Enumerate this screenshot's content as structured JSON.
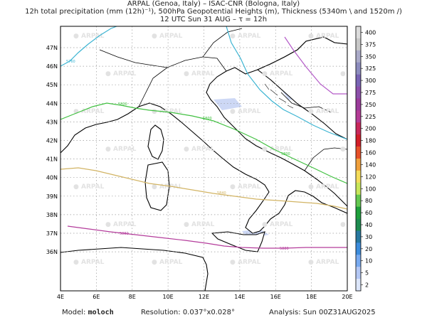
{
  "header": {
    "line1": "ARPAL (Genoa, Italy)  –  ISAC-CNR (Bologna, Italy)",
    "line2": "12h total precipitation (mm (12h)⁻¹), 500hPa Geopotential Heights (m), Thickness (5340m \\ and 1520m /)",
    "line3": "12 UTC Sun 31 AUG  –  τ = 12h"
  },
  "map": {
    "lon_labels": [
      "4E",
      "6E",
      "8E",
      "10E",
      "12E",
      "14E",
      "16E",
      "18E",
      "20E"
    ],
    "lat_labels": [
      "47N",
      "46N",
      "45N",
      "44N",
      "43N",
      "42N",
      "41N",
      "40N",
      "39N",
      "38N",
      "37N",
      "36N"
    ],
    "watermark": "ARPAL",
    "contours": [
      {
        "label": "5760",
        "color": "#3cb4d2"
      },
      {
        "label": "5800",
        "color": "#40c040"
      },
      {
        "label": "5840",
        "color": "#d2b464"
      },
      {
        "label": "5880",
        "color": "#b43c9b"
      }
    ],
    "thickness_color": "#b45ac8",
    "sea_color": "#ffffff",
    "precip_color": "#cdd8f5"
  },
  "colorbar": {
    "labels": [
      "400",
      "375",
      "350",
      "325",
      "300",
      "275",
      "250",
      "225",
      "200",
      "180",
      "160",
      "140",
      "120",
      "100",
      "80",
      "60",
      "40",
      "30",
      "20",
      "10",
      "5",
      "2"
    ],
    "colors": [
      "#dcdcdc",
      "#c8c8c8",
      "#aaaac8",
      "#8c8cbe",
      "#7864b4",
      "#8c50aa",
      "#9b3c9b",
      "#b43c96",
      "#c8285a",
      "#d21e28",
      "#e65028",
      "#f0a03c",
      "#f5dc5a",
      "#c8e65a",
      "#64c850",
      "#1ea03c",
      "#1e8c50",
      "#2878a0",
      "#3c8cdc",
      "#78aaf0",
      "#b4c8f5",
      "#dce6fa"
    ]
  },
  "footer": {
    "model_label": "Model:",
    "model_value": "moloch",
    "resolution_label": "Resolution:",
    "resolution_value": "0.037°x0.028°",
    "analysis_label": "Analysis:",
    "analysis_value": "Sun 00Z31AUG2025"
  }
}
